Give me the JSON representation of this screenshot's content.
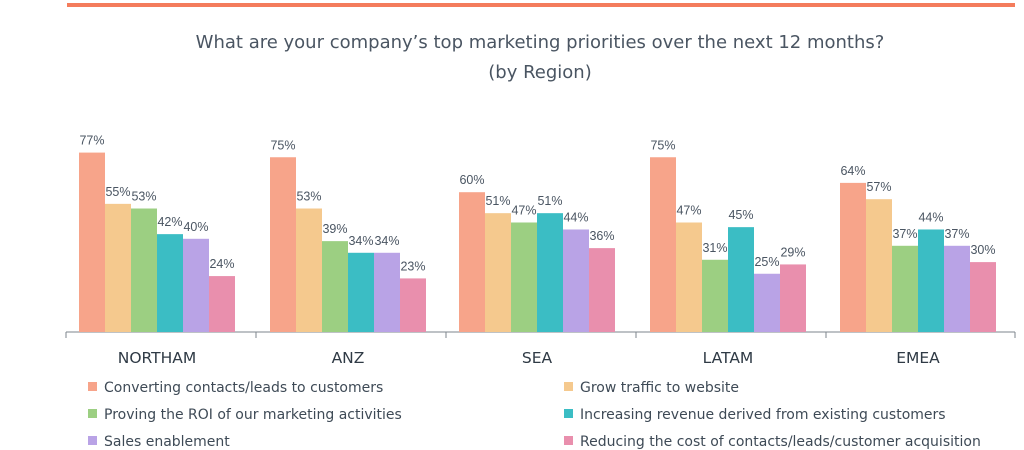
{
  "chart_data": {
    "type": "bar",
    "title": "What are your company’s top marketing priorities over the next 12 months?",
    "subtitle": "(by Region)",
    "categories": [
      "NORTHAM",
      "ANZ",
      "SEA",
      "LATAM",
      "EMEA"
    ],
    "ylim": [
      0,
      80
    ],
    "grid": false,
    "legend_position": "bottom",
    "series": [
      {
        "name": "Converting contacts/leads to customers",
        "color": "#f7a48a",
        "values": [
          77,
          75,
          60,
          75,
          64
        ],
        "labels": [
          "77%",
          "75%",
          "60%",
          "75%",
          "64%"
        ]
      },
      {
        "name": "Grow traffic to website",
        "color": "#f5c98e",
        "values": [
          55,
          53,
          51,
          47,
          57
        ],
        "labels": [
          "55%",
          "53%",
          "51%",
          "47%",
          "57%"
        ]
      },
      {
        "name": "Proving the ROI of our marketing activities",
        "color": "#9ccf82",
        "values": [
          53,
          39,
          47,
          31,
          37
        ],
        "labels": [
          "53%",
          "39%",
          "47%",
          "31%",
          "37%"
        ]
      },
      {
        "name": "Increasing revenue derived from existing customers",
        "color": "#3bbdc4",
        "values": [
          42,
          34,
          51,
          45,
          44
        ],
        "labels": [
          "42%",
          "34%",
          "51%",
          "45%",
          "44%"
        ]
      },
      {
        "name": "Sales enablement",
        "color": "#b9a3e6",
        "values": [
          40,
          34,
          44,
          25,
          37
        ],
        "labels": [
          "40%",
          "34%",
          "44%",
          "25%",
          "37%"
        ]
      },
      {
        "name": "Reducing the cost of contacts/leads/customer acquisition",
        "color": "#e98fad",
        "values": [
          24,
          23,
          36,
          29,
          30
        ],
        "labels": [
          "24%",
          "23%",
          "36%",
          "29%",
          "30%"
        ]
      }
    ]
  },
  "colors": {
    "top_rule": "#f47c5c",
    "axis": "#7d858c"
  }
}
